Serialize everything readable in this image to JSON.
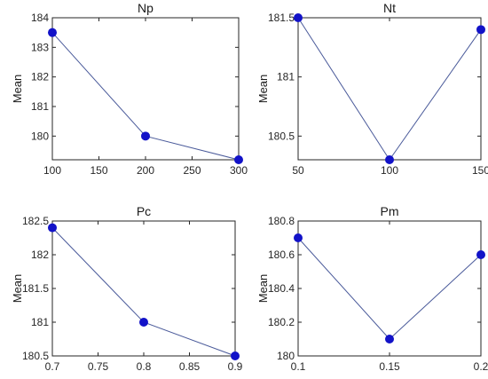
{
  "chart_data": [
    {
      "type": "line",
      "title": "Np",
      "ylabel": "Mean",
      "x": [
        100,
        200,
        300
      ],
      "y": [
        183.5,
        180.0,
        179.2
      ],
      "xlim": [
        100,
        300
      ],
      "ylim": [
        179.2,
        184
      ],
      "xticks": [
        100,
        150,
        200,
        250,
        300
      ],
      "xtick_labels": [
        "100",
        "150",
        "200",
        "250",
        "300"
      ],
      "yticks": [
        180,
        181,
        182,
        183,
        184
      ],
      "ytick_labels": [
        "180",
        "181",
        "182",
        "183",
        "184"
      ],
      "grid": false,
      "line_color": "#4a5a9a",
      "marker_color": "#1212c8"
    },
    {
      "type": "line",
      "title": "Nt",
      "ylabel": "Mean",
      "x": [
        50,
        100,
        150
      ],
      "y": [
        181.5,
        180.3,
        181.4
      ],
      "xlim": [
        50,
        150
      ],
      "ylim": [
        180.3,
        181.5
      ],
      "xticks": [
        50,
        100,
        150
      ],
      "xtick_labels": [
        "50",
        "100",
        "150"
      ],
      "yticks": [
        180.5,
        181,
        181.5
      ],
      "ytick_labels": [
        "180.5",
        "181",
        "181.5"
      ],
      "grid": false,
      "line_color": "#4a5a9a",
      "marker_color": "#1212c8"
    },
    {
      "type": "line",
      "title": "Pc",
      "ylabel": "Mean",
      "x": [
        0.7,
        0.8,
        0.9
      ],
      "y": [
        182.4,
        181.0,
        180.5
      ],
      "xlim": [
        0.7,
        0.9
      ],
      "ylim": [
        180.5,
        182.5
      ],
      "xticks": [
        0.7,
        0.75,
        0.8,
        0.85,
        0.9
      ],
      "xtick_labels": [
        "0.7",
        "0.75",
        "0.8",
        "0.85",
        "0.9"
      ],
      "yticks": [
        180.5,
        181,
        181.5,
        182,
        182.5
      ],
      "ytick_labels": [
        "180.5",
        "181",
        "181.5",
        "182",
        "182.5"
      ],
      "grid": false,
      "line_color": "#4a5a9a",
      "marker_color": "#1212c8"
    },
    {
      "type": "line",
      "title": "Pm",
      "ylabel": "Mean",
      "x": [
        0.1,
        0.15,
        0.2
      ],
      "y": [
        180.7,
        180.1,
        180.6
      ],
      "xlim": [
        0.1,
        0.2
      ],
      "ylim": [
        180,
        180.8
      ],
      "xticks": [
        0.1,
        0.15,
        0.2
      ],
      "xtick_labels": [
        "0.1",
        "0.15",
        "0.2"
      ],
      "yticks": [
        180,
        180.2,
        180.4,
        180.6,
        180.8
      ],
      "ytick_labels": [
        "180",
        "180.2",
        "180.4",
        "180.6",
        "180.8"
      ],
      "grid": false,
      "line_color": "#4a5a9a",
      "marker_color": "#1212c8"
    }
  ]
}
